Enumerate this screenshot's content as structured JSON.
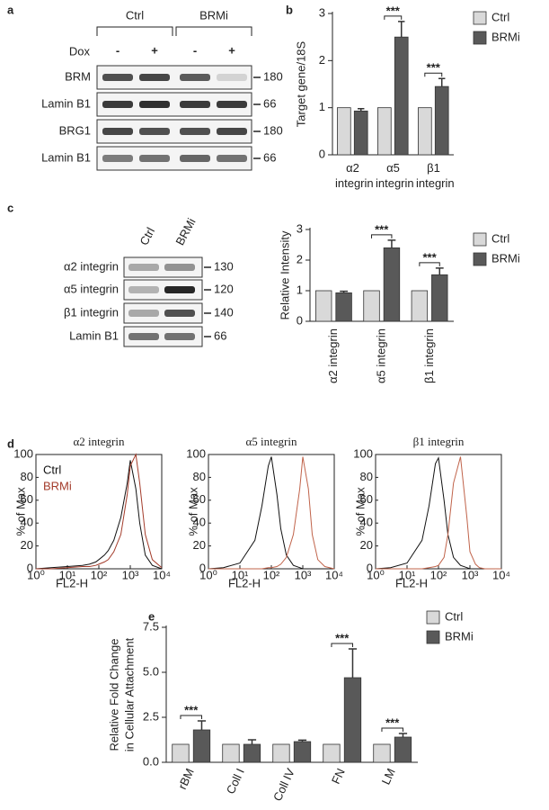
{
  "panel_labels": [
    "a",
    "b",
    "c",
    "d",
    "e"
  ],
  "blot_a": {
    "conditions": [
      "Ctrl",
      "BRMi"
    ],
    "treatment": "Dox",
    "treatment_signs": [
      "-",
      "+",
      "-",
      "+"
    ],
    "rows": [
      {
        "label": "BRM",
        "size": 180
      },
      {
        "label": "Lamin B1",
        "size": 66
      },
      {
        "label": "BRG1",
        "size": 180
      },
      {
        "label": "Lamin B1",
        "size": 66
      }
    ]
  },
  "blot_c": {
    "lanes": [
      "Ctrl",
      "BRMi"
    ],
    "rows": [
      {
        "label": "α2 integrin",
        "size": 130
      },
      {
        "label": "α5 integrin",
        "size": 120
      },
      {
        "label": "β1 integrin",
        "size": 140
      },
      {
        "label": "Lamin B1",
        "size": 66
      }
    ]
  },
  "chart_data": [
    {
      "type": "bar",
      "categories": [
        "α2 integrin",
        "α5 integrin",
        "β1 integrin"
      ],
      "ylabel": "Target gene/18S",
      "ylim": [
        0,
        3
      ],
      "yticks": [
        0,
        1,
        2,
        3
      ],
      "legend": "right",
      "series": [
        {
          "name": "Ctrl",
          "color": "#d9d9d9",
          "values": [
            1,
            1,
            1
          ]
        },
        {
          "name": "BRMi",
          "color": "#595959",
          "values": [
            0.93,
            2.5,
            1.45
          ],
          "errors": [
            0.05,
            0.33,
            0.17
          ]
        }
      ],
      "significance": [
        null,
        "***",
        "***"
      ]
    },
    {
      "type": "bar",
      "categories": [
        "α2 integrin",
        "α5 integrin",
        "β1 integrin"
      ],
      "ylabel": "Relative Intensity",
      "ylim": [
        0,
        3
      ],
      "yticks": [
        0,
        1,
        2,
        3
      ],
      "legend": "right",
      "series": [
        {
          "name": "Ctrl",
          "color": "#d9d9d9",
          "values": [
            1,
            1,
            1
          ]
        },
        {
          "name": "BRMi",
          "color": "#595959",
          "values": [
            0.93,
            2.4,
            1.52
          ],
          "errors": [
            0.05,
            0.25,
            0.22
          ]
        }
      ],
      "significance": [
        null,
        "***",
        "***"
      ]
    },
    {
      "type": "line",
      "title": "α2 integrin",
      "xscale": "log",
      "xlabel": "FL2-H",
      "ylabel": "% of Max",
      "x": [
        1,
        3,
        10,
        30,
        50,
        80,
        100,
        150,
        200,
        300,
        500,
        800,
        1000,
        1500,
        2000,
        3000,
        5000,
        10000
      ],
      "xlim": [
        1,
        10000
      ],
      "xticks": [
        {
          "value": 1,
          "label": "10⁰"
        },
        {
          "value": 10,
          "label": "10¹"
        },
        {
          "value": 100,
          "label": "10²"
        },
        {
          "value": 1000,
          "label": "10³"
        },
        {
          "value": 10000,
          "label": "10⁴"
        }
      ],
      "ylim": [
        0,
        100
      ],
      "yticks": [
        0,
        20,
        40,
        60,
        80,
        100
      ],
      "legend": "upper left",
      "series": [
        {
          "name": "Ctrl",
          "color": "#111111",
          "values": [
            0,
            1,
            2,
            3,
            4,
            6,
            8,
            12,
            16,
            25,
            45,
            75,
            95,
            70,
            40,
            12,
            3,
            0
          ]
        },
        {
          "name": "BRMi",
          "color": "#a33b2a",
          "values": [
            0,
            0,
            1,
            2,
            2,
            3,
            4,
            6,
            8,
            15,
            30,
            65,
            90,
            100,
            75,
            30,
            8,
            1
          ]
        }
      ]
    },
    {
      "type": "line",
      "title": "α5 integrin",
      "xscale": "log",
      "xlabel": "FL2-H",
      "ylabel": "% of Max",
      "x": [
        1,
        3,
        10,
        30,
        50,
        80,
        100,
        150,
        200,
        300,
        500,
        800,
        1000,
        1500,
        2000,
        3000,
        5000,
        10000
      ],
      "xlim": [
        1,
        10000
      ],
      "xticks": [
        {
          "value": 1,
          "label": "10⁰"
        },
        {
          "value": 10,
          "label": "10¹"
        },
        {
          "value": 100,
          "label": "10²"
        },
        {
          "value": 1000,
          "label": "10³"
        },
        {
          "value": 10000,
          "label": "10⁴"
        }
      ],
      "ylim": [
        0,
        100
      ],
      "yticks": [
        0,
        20,
        40,
        60,
        80,
        100
      ],
      "series": [
        {
          "color": "#111111",
          "values": [
            0,
            1,
            5,
            25,
            55,
            90,
            98,
            65,
            35,
            12,
            3,
            1,
            0,
            0,
            0,
            0,
            0,
            0
          ]
        },
        {
          "color": "#c0634a",
          "values": [
            0,
            0,
            0,
            0,
            0,
            1,
            1,
            2,
            4,
            10,
            30,
            70,
            98,
            70,
            30,
            8,
            2,
            0
          ]
        }
      ]
    },
    {
      "type": "line",
      "title": "β1 integrin",
      "xscale": "log",
      "xlabel": "FL2-H",
      "ylabel": "% of Max",
      "x": [
        1,
        3,
        10,
        30,
        50,
        80,
        100,
        150,
        200,
        300,
        500,
        800,
        1000,
        1500,
        2000,
        3000,
        5000,
        10000
      ],
      "xlim": [
        1,
        10000
      ],
      "xticks": [
        {
          "value": 1,
          "label": "10⁰"
        },
        {
          "value": 10,
          "label": "10¹"
        },
        {
          "value": 100,
          "label": "10²"
        },
        {
          "value": 1000,
          "label": "10³"
        },
        {
          "value": 10000,
          "label": "10⁴"
        }
      ],
      "ylim": [
        0,
        100
      ],
      "yticks": [
        0,
        20,
        40,
        60,
        80,
        100
      ],
      "series": [
        {
          "color": "#111111",
          "values": [
            0,
            1,
            5,
            25,
            55,
            92,
            97,
            60,
            30,
            10,
            3,
            1,
            0,
            0,
            0,
            0,
            0,
            0
          ]
        },
        {
          "color": "#c0634a",
          "values": [
            0,
            0,
            0,
            0,
            1,
            2,
            3,
            10,
            30,
            75,
            98,
            45,
            15,
            4,
            1,
            0,
            0,
            0
          ]
        }
      ]
    },
    {
      "type": "bar",
      "categories": [
        "rBM",
        "Coll I",
        "Coll IV",
        "FN",
        "LM"
      ],
      "ylabel": [
        "Relative Fold Change",
        "in Cellular Attachment"
      ],
      "ylim": [
        0,
        7.5
      ],
      "yticks": [
        {
          "value": 0,
          "label": "0.0"
        },
        2.5,
        {
          "value": 5,
          "label": "5.0"
        },
        7.5
      ],
      "legend": "right",
      "series": [
        {
          "name": "Ctrl",
          "color": "#d9d9d9",
          "values": [
            1,
            1,
            1,
            1,
            1
          ]
        },
        {
          "name": "BRMi",
          "color": "#595959",
          "values": [
            1.8,
            1.0,
            1.15,
            4.7,
            1.4
          ],
          "errors": [
            0.5,
            0.25,
            0.08,
            1.6,
            0.2
          ]
        }
      ],
      "significance": [
        "***",
        null,
        null,
        "***",
        "***"
      ]
    }
  ]
}
